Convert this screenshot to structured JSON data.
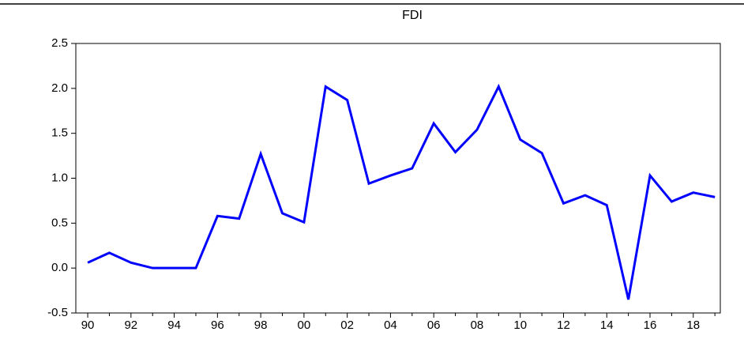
{
  "chart_data": {
    "type": "line",
    "title": "FDI",
    "x": [
      1990,
      1991,
      1992,
      1993,
      1994,
      1995,
      1996,
      1997,
      1998,
      1999,
      2000,
      2001,
      2002,
      2003,
      2004,
      2005,
      2006,
      2007,
      2008,
      2009,
      2010,
      2011,
      2012,
      2013,
      2014,
      2015,
      2016,
      2017,
      2018,
      2019
    ],
    "series": [
      {
        "color": "#0000ff",
        "values": [
          0.06,
          0.17,
          0.06,
          0.0,
          0.0,
          0.0,
          0.58,
          0.55,
          1.27,
          0.61,
          0.51,
          2.02,
          1.87,
          0.94,
          1.03,
          1.11,
          1.61,
          1.29,
          1.54,
          2.02,
          1.43,
          1.28,
          0.72,
          0.81,
          0.7,
          -0.35,
          1.03,
          0.74,
          0.84,
          0.79
        ]
      }
    ],
    "xlim": [
      1989.45,
      2019.25
    ],
    "xticks": [
      {
        "value": 1990,
        "label": "90"
      },
      {
        "value": 1992,
        "label": "92"
      },
      {
        "value": 1994,
        "label": "94"
      },
      {
        "value": 1996,
        "label": "96"
      },
      {
        "value": 1998,
        "label": "98"
      },
      {
        "value": 2000,
        "label": "00"
      },
      {
        "value": 2002,
        "label": "02"
      },
      {
        "value": 2004,
        "label": "04"
      },
      {
        "value": 2006,
        "label": "06"
      },
      {
        "value": 2008,
        "label": "08"
      },
      {
        "value": 2010,
        "label": "10"
      },
      {
        "value": 2012,
        "label": "12"
      },
      {
        "value": 2014,
        "label": "14"
      },
      {
        "value": 2016,
        "label": "16"
      },
      {
        "value": 2018,
        "label": "18"
      }
    ],
    "ylim": [
      -0.5,
      2.5
    ],
    "yticks": [
      -0.5,
      {
        "value": 0,
        "label": "0.0"
      },
      0.5,
      {
        "value": 1,
        "label": "1.0"
      },
      1.5,
      {
        "value": 2,
        "label": "2.0"
      },
      2.5
    ],
    "grid": false
  }
}
